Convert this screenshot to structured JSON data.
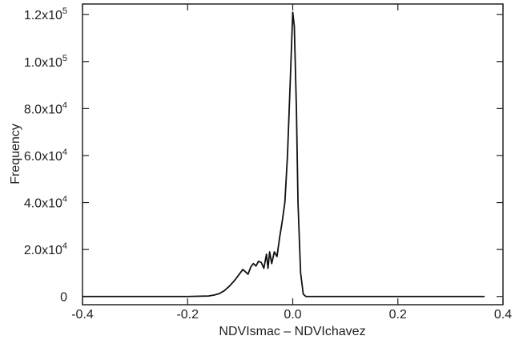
{
  "chart_data": {
    "type": "line",
    "xlabel": "NDVIsmac – NDVIchavez",
    "ylabel": "Frequency",
    "x": [
      -0.4,
      -0.2,
      -0.16,
      -0.15,
      -0.14,
      -0.13,
      -0.12,
      -0.11,
      -0.1,
      -0.095,
      -0.09,
      -0.085,
      -0.08,
      -0.075,
      -0.07,
      -0.065,
      -0.06,
      -0.055,
      -0.05,
      -0.047,
      -0.044,
      -0.04,
      -0.035,
      -0.03,
      -0.025,
      -0.02,
      -0.015,
      -0.01,
      -0.005,
      0.0,
      0.003,
      0.007,
      0.01,
      0.015,
      0.02,
      0.025,
      0.365
    ],
    "series": [
      {
        "color": "#111111",
        "values": [
          0,
          0,
          200,
          600,
          1200,
          2500,
          4500,
          7000,
          10000,
          11500,
          10500,
          9500,
          12500,
          14000,
          13000,
          15000,
          14500,
          12000,
          18000,
          12000,
          19000,
          14000,
          19000,
          17000,
          25000,
          32000,
          40000,
          60000,
          90000,
          121000,
          115000,
          80000,
          40000,
          10000,
          1000,
          0,
          0
        ]
      }
    ],
    "xlim": [
      -0.4,
      0.4
    ],
    "xticks": [
      -0.4,
      -0.2,
      {
        "value": 0,
        "label": "0.0"
      },
      0.2,
      0.4
    ],
    "ylim": [
      -3500,
      124500
    ],
    "yticks": [
      0,
      {
        "value": 20000,
        "label": "2.0x10",
        "sup": "4"
      },
      {
        "value": 40000,
        "label": "4.0x10",
        "sup": "4"
      },
      {
        "value": 60000,
        "label": "6.0x10",
        "sup": "4"
      },
      {
        "value": 80000,
        "label": "8.0x10",
        "sup": "4"
      },
      {
        "value": 100000,
        "label": "1.0x10",
        "sup": "5"
      },
      {
        "value": 120000,
        "label": "1.2x10",
        "sup": "5"
      }
    ]
  }
}
